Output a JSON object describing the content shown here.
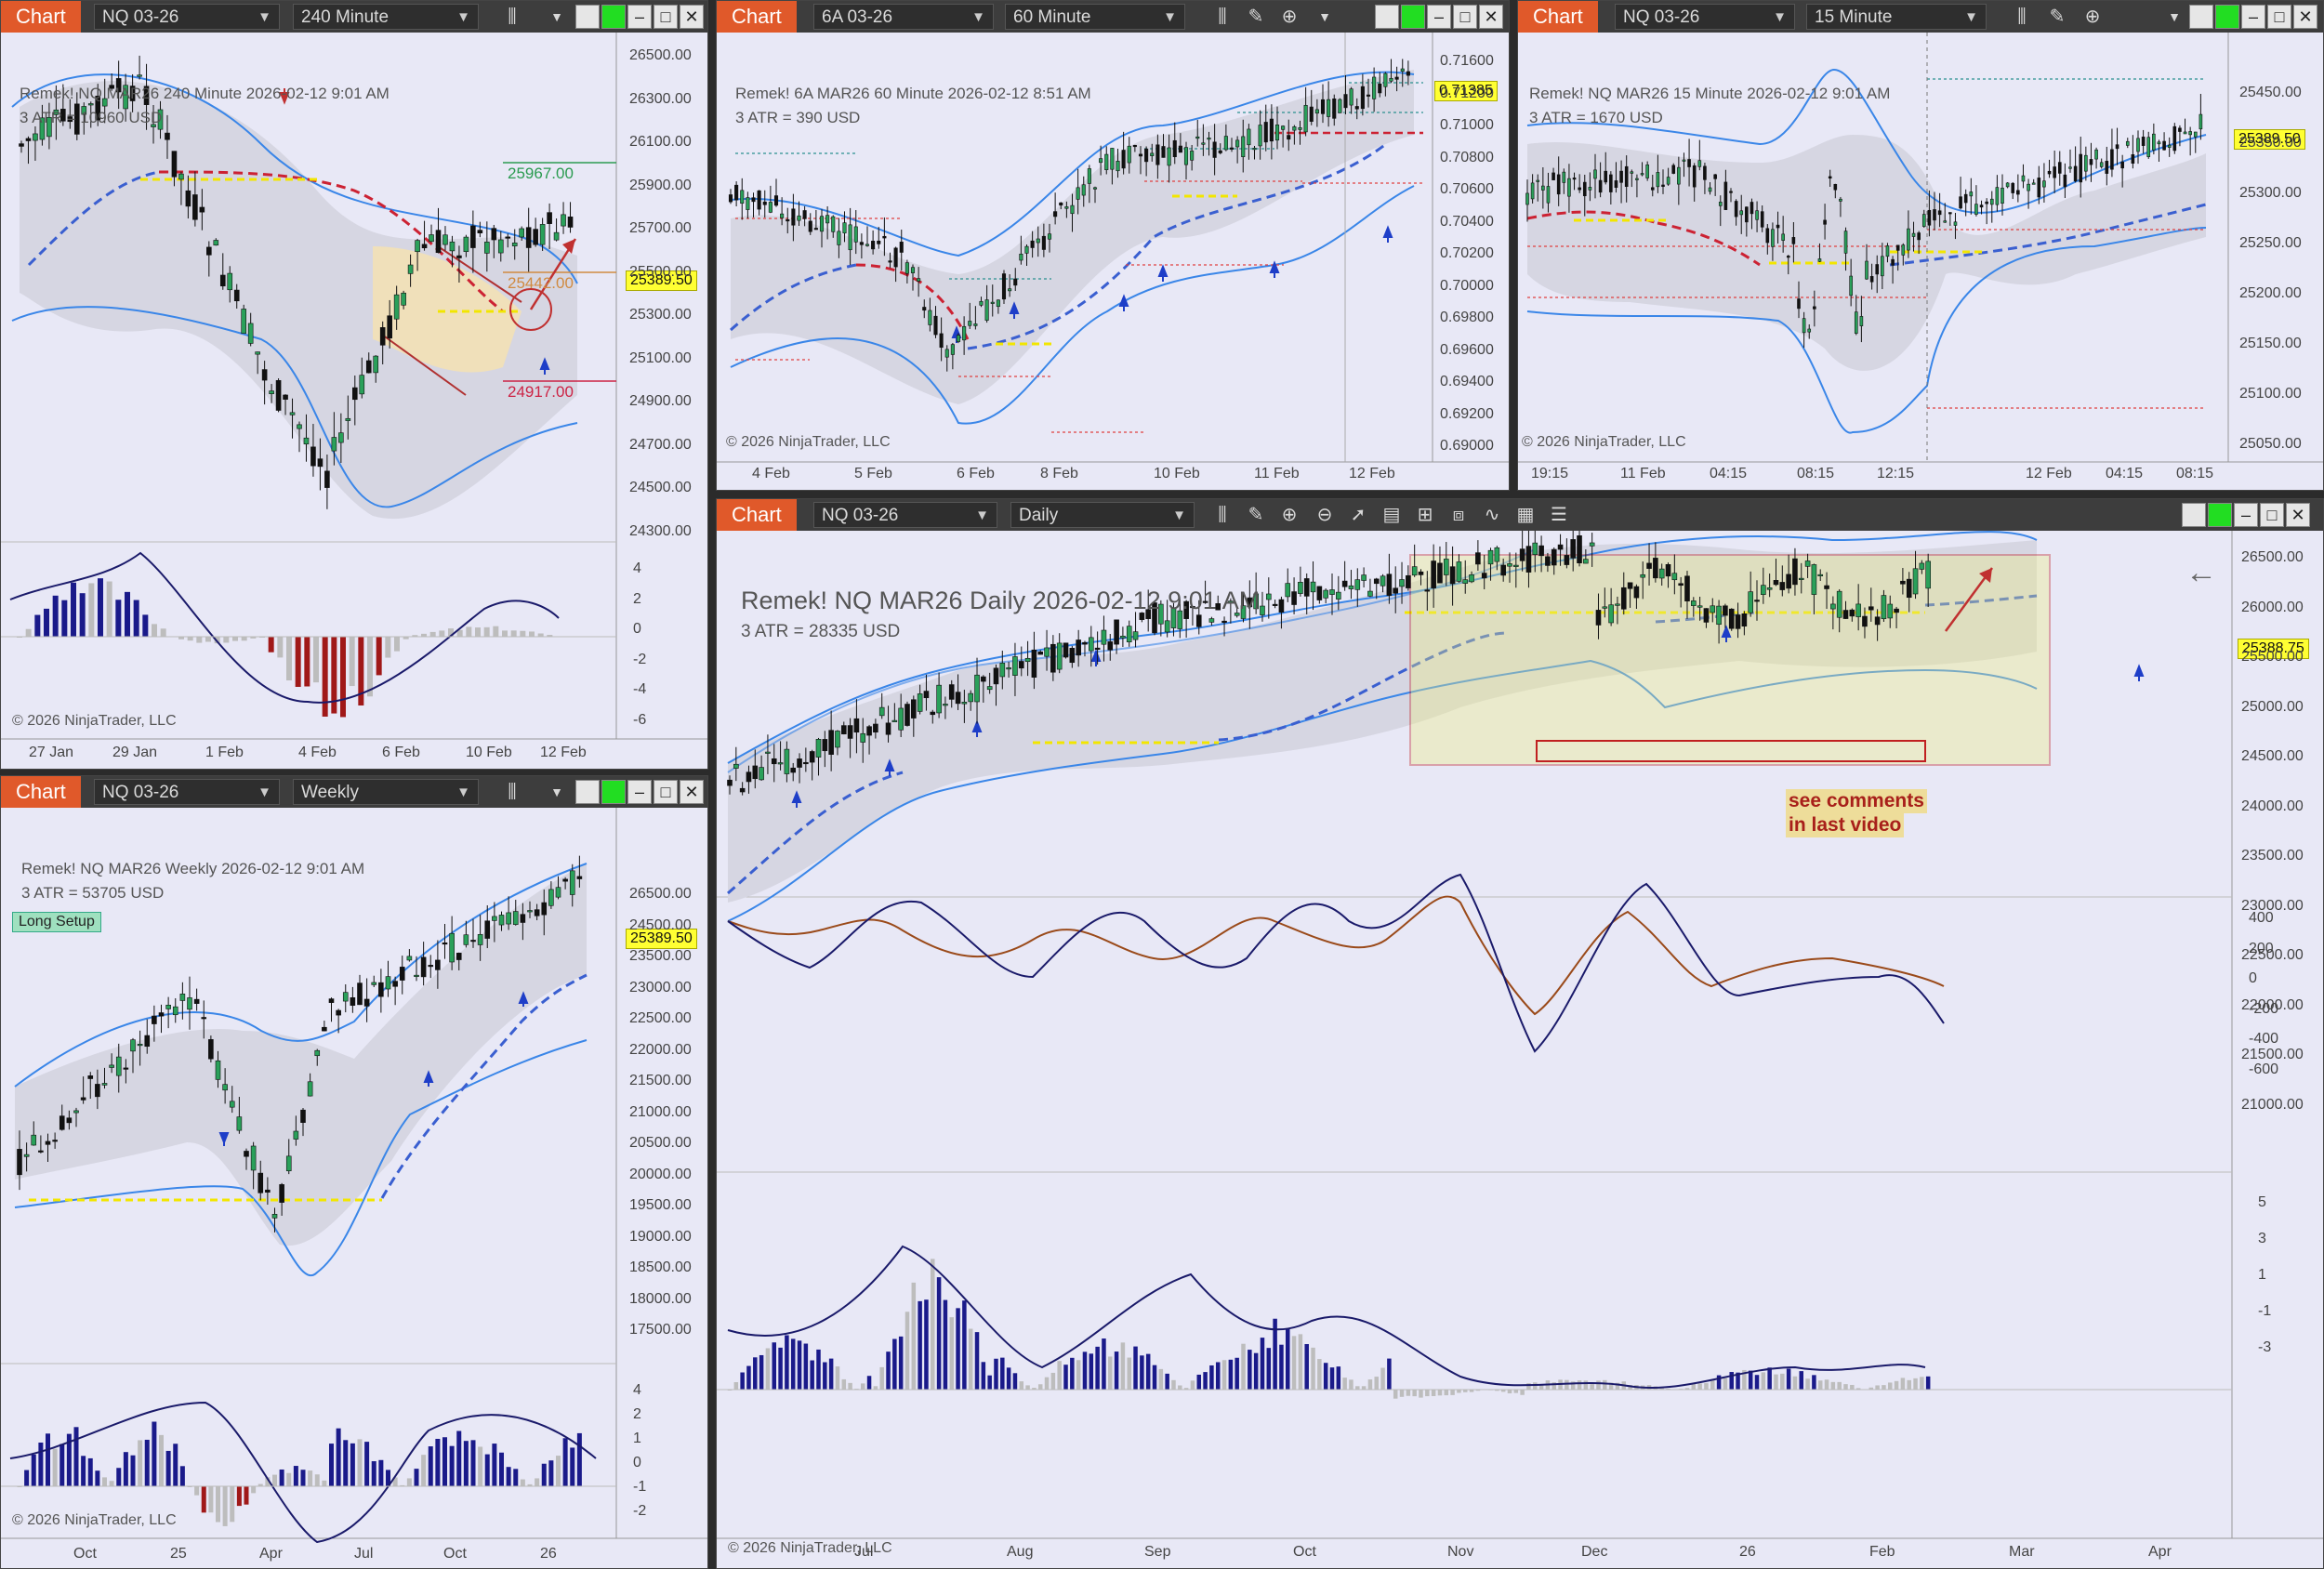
{
  "charts": {
    "nq240": {
      "label": "Chart",
      "instrument": "NQ 03-26",
      "interval": "240 Minute",
      "title": "Remek!  NQ MAR26  240 Minute  2026-02-12 9:01 AM",
      "atr": "3 ATR = 10960 USD",
      "copyright": "© 2026 NinjaTrader, LLC",
      "price": "25389.50",
      "level_top": "25967.00",
      "level_mid": "25442.00",
      "level_bot": "24917.00",
      "y_ticks": [
        "26500.00",
        "26300.00",
        "26100.00",
        "25900.00",
        "25700.00",
        "25500.00",
        "25300.00",
        "25100.00",
        "24900.00",
        "24700.00",
        "24500.00",
        "24300.00"
      ],
      "osc_ticks": [
        "4",
        "2",
        "0",
        "-2",
        "-4",
        "-6"
      ],
      "x_ticks": [
        "27 Jan",
        "29 Jan",
        "1 Feb",
        "4 Feb",
        "6 Feb",
        "10 Feb",
        "12 Feb"
      ]
    },
    "a6": {
      "label": "Chart",
      "instrument": "6A 03-26",
      "interval": "60 Minute",
      "title": "Remek!  6A MAR26  60 Minute  2026-02-12 8:51 AM",
      "atr": "3 ATR = 390 USD",
      "copyright": "© 2026 NinjaTrader, LLC",
      "price": "0.71385",
      "y_ticks": [
        "0.71600",
        "0.71200",
        "0.71000",
        "0.70800",
        "0.70600",
        "0.70400",
        "0.70200",
        "0.70000",
        "0.69800",
        "0.69600",
        "0.69400",
        "0.69200",
        "0.69000"
      ],
      "x_ticks": [
        "4 Feb",
        "5 Feb",
        "6 Feb",
        "8 Feb",
        "10 Feb",
        "11 Feb",
        "12 Feb"
      ]
    },
    "nq15": {
      "label": "Chart",
      "instrument": "NQ 03-26",
      "interval": "15 Minute",
      "title": "Remek!  NQ MAR26  15 Minute  2026-02-12 9:01 AM",
      "atr": "3 ATR = 1670 USD",
      "copyright": "© 2026 NinjaTrader, LLC",
      "price": "25389.50",
      "y_ticks": [
        "25450.00",
        "25350.00",
        "25300.00",
        "25250.00",
        "25200.00",
        "25150.00",
        "25100.00",
        "25050.00"
      ],
      "x_ticks": [
        "19:15",
        "11 Feb",
        "04:15",
        "08:15",
        "12:15",
        "12 Feb",
        "04:15",
        "08:15"
      ]
    },
    "weekly": {
      "label": "Chart",
      "instrument": "NQ 03-26",
      "interval": "Weekly",
      "title": "Remek!  NQ MAR26  Weekly  2026-02-12 9:01 AM",
      "atr": "3 ATR = 53705 USD",
      "copyright": "© 2026 NinjaTrader, LLC",
      "price": "25389.50",
      "badge": "Long Setup",
      "y_ticks": [
        "26500.00",
        "24500.00",
        "23500.00",
        "23000.00",
        "22500.00",
        "22000.00",
        "21500.00",
        "21000.00",
        "20500.00",
        "20000.00",
        "19500.00",
        "19000.00",
        "18500.00",
        "18000.00",
        "17500.00"
      ],
      "osc_ticks": [
        "4",
        "2",
        "1",
        "0",
        "-1",
        "-2"
      ],
      "x_ticks": [
        "Oct",
        "25",
        "Apr",
        "Jul",
        "Oct",
        "26"
      ]
    },
    "daily": {
      "label": "Chart",
      "instrument": "NQ 03-26",
      "interval": "Daily",
      "title": "Remek!  NQ MAR26  Daily  2026-02-12 9:01 AM",
      "atr": "3 ATR = 28335 USD",
      "copyright": "© 2026 NinjaTrader, LLC",
      "price": "25388.75",
      "note_line1": "see comments",
      "note_line2": "in last video",
      "y_ticks": [
        "26500.00",
        "26000.00",
        "25500.00",
        "25000.00",
        "24500.00",
        "24000.00",
        "23500.00",
        "23000.00",
        "22500.00",
        "22000.00",
        "21500.00",
        "21000.00"
      ],
      "osc1_ticks": [
        "400",
        "200",
        "0",
        "-200",
        "-400",
        "-600"
      ],
      "osc2_ticks": [
        "5",
        "3",
        "1",
        "-1",
        "-3"
      ],
      "x_ticks": [
        "Jul",
        "Aug",
        "Sep",
        "Oct",
        "Nov",
        "Dec",
        "26",
        "Feb",
        "Mar",
        "Apr"
      ]
    }
  }
}
